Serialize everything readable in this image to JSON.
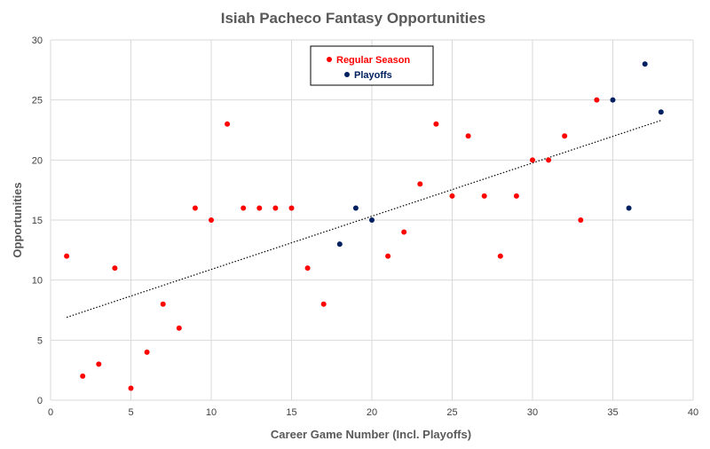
{
  "chart_data": {
    "type": "scatter",
    "title": "Isiah Pacheco Fantasy Opportunities",
    "xlabel": "Career Game Number (Incl. Playoffs)",
    "ylabel": "Opportunities",
    "xlim": [
      0,
      40
    ],
    "ylim": [
      0,
      30
    ],
    "xticks": [
      "0",
      "5",
      "10",
      "15",
      "20",
      "25",
      "30",
      "35",
      "40"
    ],
    "yticks": [
      "0",
      "5",
      "10",
      "15",
      "20",
      "25",
      "30"
    ],
    "grid": true,
    "legend_position": "top-center",
    "series": [
      {
        "name": "Regular Season",
        "color": "#ff0000",
        "points": [
          {
            "x": 1,
            "y": 12
          },
          {
            "x": 2,
            "y": 2
          },
          {
            "x": 3,
            "y": 3
          },
          {
            "x": 4,
            "y": 11
          },
          {
            "x": 5,
            "y": 1
          },
          {
            "x": 6,
            "y": 4
          },
          {
            "x": 7,
            "y": 8
          },
          {
            "x": 8,
            "y": 6
          },
          {
            "x": 9,
            "y": 16
          },
          {
            "x": 10,
            "y": 15
          },
          {
            "x": 11,
            "y": 23
          },
          {
            "x": 12,
            "y": 16
          },
          {
            "x": 13,
            "y": 16
          },
          {
            "x": 14,
            "y": 16
          },
          {
            "x": 15,
            "y": 16
          },
          {
            "x": 16,
            "y": 11
          },
          {
            "x": 17,
            "y": 8
          },
          {
            "x": 21,
            "y": 12
          },
          {
            "x": 22,
            "y": 14
          },
          {
            "x": 23,
            "y": 18
          },
          {
            "x": 24,
            "y": 23
          },
          {
            "x": 25,
            "y": 17
          },
          {
            "x": 26,
            "y": 22
          },
          {
            "x": 27,
            "y": 17
          },
          {
            "x": 28,
            "y": 12
          },
          {
            "x": 29,
            "y": 17
          },
          {
            "x": 30,
            "y": 20
          },
          {
            "x": 31,
            "y": 20
          },
          {
            "x": 32,
            "y": 22
          },
          {
            "x": 33,
            "y": 15
          },
          {
            "x": 34,
            "y": 25
          }
        ]
      },
      {
        "name": "Playoffs",
        "color": "#002060",
        "points": [
          {
            "x": 18,
            "y": 13
          },
          {
            "x": 19,
            "y": 16
          },
          {
            "x": 20,
            "y": 15
          },
          {
            "x": 35,
            "y": 25
          },
          {
            "x": 36,
            "y": 16
          },
          {
            "x": 37,
            "y": 28
          },
          {
            "x": 38,
            "y": 24
          }
        ]
      }
    ],
    "trendline": {
      "type": "linear",
      "style": "dotted",
      "color": "#000000",
      "x_start": 1,
      "y_start": 6.9,
      "x_end": 38,
      "y_end": 23.3
    }
  }
}
